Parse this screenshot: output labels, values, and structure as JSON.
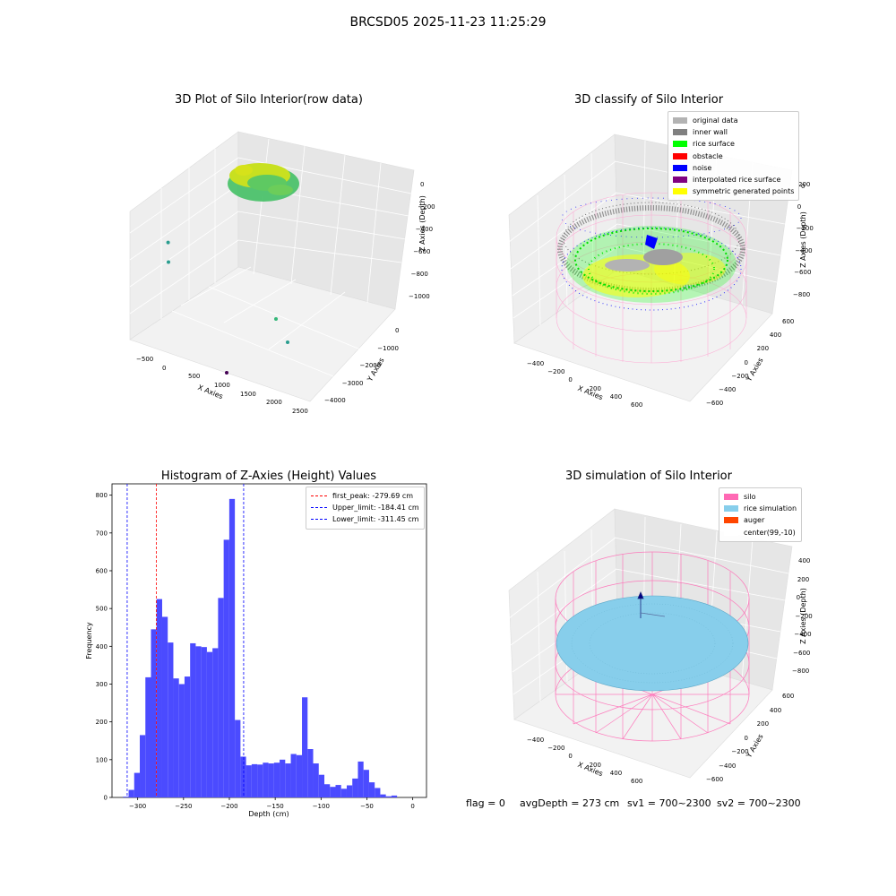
{
  "suptitle": "BRCSD05 2025-11-23 11:25:29",
  "colors": {
    "viridis_yellow": "#c8e020",
    "viridis_green": "#4cc26c",
    "viridis_teal": "#2a9d8f",
    "viridis_purple": "#440154",
    "hist_blue": "#4b4bff",
    "silo_pink": "#ff69b4",
    "rice_blue": "#87ceeb",
    "auger_orange": "#ff4500"
  },
  "panel1": {
    "title": "3D Plot of Silo Interior(row data)",
    "x_label": "X Axies",
    "y_label": "Y Axies",
    "z_label": "Z Axies (Depth)",
    "x_ticks": [
      "−500",
      "0",
      "500",
      "1000",
      "1500",
      "2000",
      "2500"
    ],
    "y_ticks": [
      "0",
      "−1000",
      "−2000",
      "−3000",
      "−4000"
    ],
    "z_ticks": [
      "0",
      "−200",
      "−400",
      "−600",
      "−800",
      "−1000"
    ]
  },
  "panel2": {
    "title": "3D classify of Silo Interior",
    "x_label": "X Axies",
    "y_label": "Y Axies",
    "z_label": "Z Axies (Depth)",
    "x_ticks": [
      "−400",
      "−200",
      "0",
      "200",
      "400",
      "600"
    ],
    "y_ticks": [
      "600",
      "400",
      "200",
      "0",
      "−200",
      "−400",
      "−600"
    ],
    "z_ticks": [
      "200",
      "0",
      "−200",
      "−400",
      "−600",
      "−800"
    ],
    "z_tick_partial": "0",
    "legend": [
      {
        "label": "original data",
        "color": "#b3b3b3"
      },
      {
        "label": "inner wall",
        "color": "#808080"
      },
      {
        "label": "rice surface",
        "color": "#00ff00"
      },
      {
        "label": "obstacle",
        "color": "#ff0000"
      },
      {
        "label": "noise",
        "color": "#0000ff"
      },
      {
        "label": "interpolated rice surface",
        "color": "#800080"
      },
      {
        "label": "symmetric generated points",
        "color": "#ffff00"
      }
    ]
  },
  "panel3": {
    "title": "Histogram of Z-Axies (Height) Values",
    "legend": [
      {
        "label": "first_peak: -279.69 cm",
        "color": "#ff0000"
      },
      {
        "label": "Upper_limit: -184.41 cm",
        "color": "#0000ff"
      },
      {
        "label": "Lower_limit: -311.45 cm",
        "color": "#0000ff"
      }
    ]
  },
  "panel4": {
    "title": "3D simulation of Silo Interior",
    "x_label": "X Axies",
    "y_label": "Y Axies",
    "z_label": "Z Axies (Depth)",
    "x_ticks": [
      "−400",
      "−200",
      "0",
      "200",
      "400",
      "600"
    ],
    "y_ticks": [
      "600",
      "400",
      "200",
      "0",
      "−200",
      "−400",
      "−600"
    ],
    "z_ticks": [
      "400",
      "200",
      "0",
      "−200",
      "−400",
      "−600",
      "−800"
    ],
    "legend": [
      {
        "label": "silo",
        "color": "#ff69b4"
      },
      {
        "label": "rice simulation",
        "color": "#87ceeb"
      },
      {
        "label": "auger",
        "color": "#ff4500"
      },
      {
        "label": "center(99,-10)",
        "color": "#ffffff"
      }
    ]
  },
  "footer": {
    "flag": "flag = 0",
    "avg_depth": "avgDepth = 273 cm",
    "sv1": "sv1 = 700~2300",
    "sv2": "sv2 = 700~2300"
  },
  "chart_data": [
    {
      "type": "scatter",
      "subtype": "3d",
      "title": "3D Plot of Silo Interior(row data)",
      "xlabel": "X Axies",
      "ylabel": "Y Axies",
      "zlabel": "Z Axies (Depth)",
      "grid": true,
      "colormap": "viridis",
      "outlier_points": [
        {
          "x": 1000,
          "y": -3000,
          "z": -1000
        },
        {
          "x": 0,
          "y": -400,
          "z": -400
        },
        {
          "x": 0,
          "y": -500,
          "z": -550
        },
        {
          "x": 2000,
          "y": -3000,
          "z": -500
        },
        {
          "x": 2200,
          "y": -3500,
          "z": -600
        }
      ]
    },
    {
      "type": "scatter",
      "subtype": "3d",
      "title": "3D classify of Silo Interior",
      "xlabel": "X Axies",
      "ylabel": "Y Axies",
      "zlabel": "Z Axies (Depth)",
      "grid": true,
      "legend_position": "top-right",
      "series": [
        {
          "name": "original data"
        },
        {
          "name": "inner wall"
        },
        {
          "name": "rice surface"
        },
        {
          "name": "obstacle"
        },
        {
          "name": "noise"
        },
        {
          "name": "interpolated rice surface"
        },
        {
          "name": "symmetric generated points"
        }
      ]
    },
    {
      "type": "bar",
      "subtype": "histogram",
      "title": "Histogram of Z-Axies (Height) Values",
      "xlabel": "Depth (cm)",
      "ylabel": "Frequency",
      "xlim": [
        -328,
        15
      ],
      "ylim": [
        0,
        830
      ],
      "x_ticks": [
        -300,
        -250,
        -200,
        -150,
        -100,
        -50,
        0
      ],
      "y_ticks": [
        0,
        100,
        200,
        300,
        400,
        500,
        600,
        700,
        800
      ],
      "bin_start": -316,
      "bin_width": 6.1,
      "values": [
        2,
        20,
        65,
        165,
        318,
        445,
        525,
        478,
        410,
        315,
        300,
        320,
        408,
        400,
        398,
        385,
        395,
        528,
        682,
        790,
        205,
        108,
        85,
        88,
        87,
        92,
        90,
        92,
        100,
        90,
        115,
        112,
        265,
        128,
        90,
        60,
        35,
        28,
        33,
        23,
        32,
        50,
        95,
        73,
        40,
        25,
        8,
        3,
        5
      ],
      "vlines": [
        {
          "label": "first_peak: -279.69 cm",
          "x": -279.69,
          "color": "#ff0000"
        },
        {
          "label": "Upper_limit: -184.41 cm",
          "x": -184.41,
          "color": "#0000ff"
        },
        {
          "label": "Lower_limit: -311.45 cm",
          "x": -311.45,
          "color": "#0000ff"
        }
      ],
      "legend_position": "top-right"
    },
    {
      "type": "area",
      "subtype": "3d surface",
      "title": "3D simulation of Silo Interior",
      "xlabel": "X Axies",
      "ylabel": "Y Axies",
      "zlabel": "Z Axies (Depth)",
      "grid": true,
      "legend_position": "top-right",
      "series": [
        {
          "name": "silo"
        },
        {
          "name": "rice simulation"
        },
        {
          "name": "auger"
        },
        {
          "name": "center(99,-10)"
        }
      ]
    }
  ]
}
